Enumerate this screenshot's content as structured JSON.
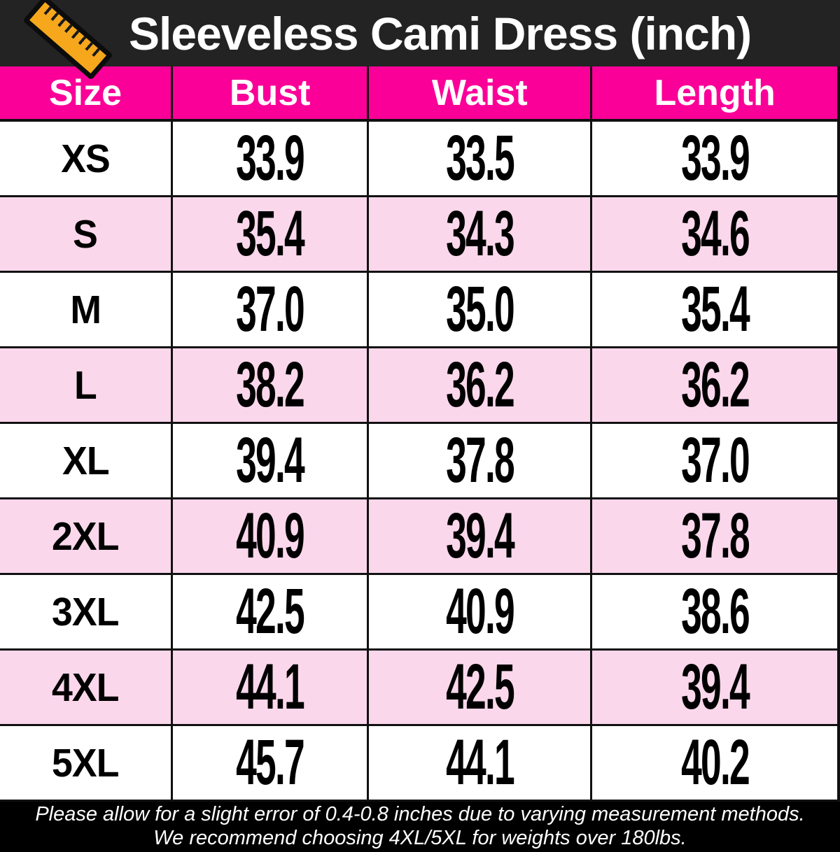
{
  "chart_data": {
    "type": "table",
    "title": "Sleeveless Cami Dress (inch)",
    "unit": "inch",
    "columns": [
      "Size",
      "Bust",
      "Waist",
      "Length"
    ],
    "rows": [
      [
        "XS",
        "33.9",
        "33.5",
        "33.9"
      ],
      [
        "S",
        "35.4",
        "34.3",
        "34.6"
      ],
      [
        "M",
        "37.0",
        "35.0",
        "35.4"
      ],
      [
        "L",
        "38.2",
        "36.2",
        "36.2"
      ],
      [
        "XL",
        "39.4",
        "37.8",
        "37.0"
      ],
      [
        "2XL",
        "40.9",
        "39.4",
        "37.8"
      ],
      [
        "3XL",
        "42.5",
        "40.9",
        "38.6"
      ],
      [
        "4XL",
        "44.1",
        "42.5",
        "39.4"
      ],
      [
        "5XL",
        "45.7",
        "44.1",
        "40.2"
      ]
    ],
    "footnotes": [
      "Please allow for a slight error of 0.4-0.8 inches due to varying measurement methods.",
      "We recommend choosing 4XL/5XL for weights over 180lbs."
    ]
  },
  "icons": {
    "title_icon": "ruler-icon"
  },
  "colors": {
    "title_bar_bg": "#232323",
    "title_text": "#FFFFFF",
    "header_row_bg": "#FA0098",
    "alt_row_bg": "#FBD7EC",
    "row_bg": "#FFFFFF",
    "grid_border": "#111111",
    "footer_bg": "#000000",
    "footer_text": "#FFFFFF",
    "ruler_orange": "#F6A71B"
  }
}
